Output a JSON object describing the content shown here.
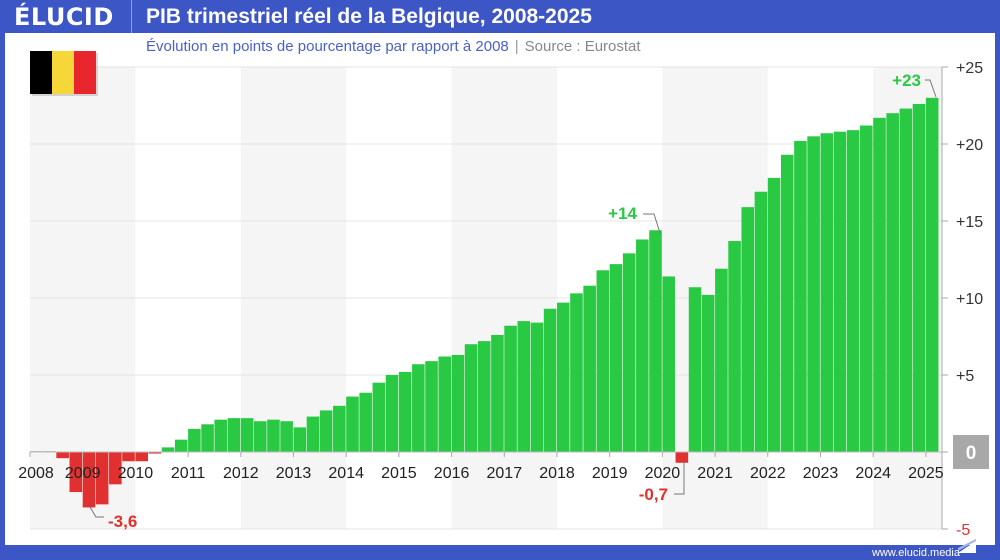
{
  "header": {
    "logo": "ÉLUCID",
    "title": "PIB trimestriel réel de la Belgique, 2008-2025"
  },
  "subtitle": {
    "text": "Évolution en points de pourcentage par rapport à 2008",
    "source": "Source : Eurostat"
  },
  "footer": {
    "url": "www.elucid.media"
  },
  "flag": {
    "name": "belgium-flag",
    "colors": [
      "#000000",
      "#f5d73a",
      "#e8262e"
    ]
  },
  "colors": {
    "positive": "#2ac944",
    "negative": "#e03030",
    "brand": "#3d56c6",
    "shade": "#f5f5f5"
  },
  "chart_data": {
    "type": "bar",
    "title": "PIB trimestriel réel de la Belgique, 2008-2025",
    "subtitle": "Évolution en points de pourcentage par rapport à 2008",
    "x_start": "2008-Q1",
    "frequency": "quarterly",
    "x_tick_labels": [
      "2008",
      "2009",
      "2010",
      "2011",
      "2012",
      "2013",
      "2014",
      "2015",
      "2016",
      "2017",
      "2018",
      "2019",
      "2020",
      "2021",
      "2022",
      "2023",
      "2024",
      "2025"
    ],
    "y_tick_labels": [
      "+25",
      "+20",
      "+15",
      "+10",
      "+5",
      "0",
      "-5"
    ],
    "ylim": [
      -5,
      25
    ],
    "y_axis_position": "right",
    "grid": true,
    "values": [
      0.05,
      0.05,
      -0.4,
      -2.6,
      -3.6,
      -3.4,
      -2.1,
      -0.6,
      -0.6,
      -0.1,
      0.3,
      0.8,
      1.5,
      1.8,
      2.1,
      2.2,
      2.2,
      2.0,
      2.1,
      2.0,
      1.6,
      2.3,
      2.7,
      3.0,
      3.6,
      3.85,
      4.5,
      5.0,
      5.2,
      5.7,
      5.9,
      6.2,
      6.3,
      7.0,
      7.2,
      7.6,
      8.2,
      8.5,
      8.4,
      9.3,
      9.7,
      10.3,
      10.8,
      11.8,
      12.2,
      12.9,
      13.8,
      14.4,
      11.4,
      -0.7,
      10.7,
      10.2,
      11.9,
      13.7,
      15.9,
      16.9,
      17.8,
      19.3,
      20.2,
      20.5,
      20.7,
      20.8,
      20.9,
      21.2,
      21.7,
      22.0,
      22.3,
      22.6,
      23.0
    ],
    "annotations": [
      {
        "label": "-3,6",
        "period": "2009-Q1",
        "value": -3.6
      },
      {
        "label": "+14",
        "period": "2019-Q4",
        "value": 14.4
      },
      {
        "label": "-0,7",
        "period": "2020-Q2",
        "value": -0.7
      },
      {
        "label": "+23",
        "period": "2025-Q1",
        "value": 23.0
      }
    ]
  }
}
